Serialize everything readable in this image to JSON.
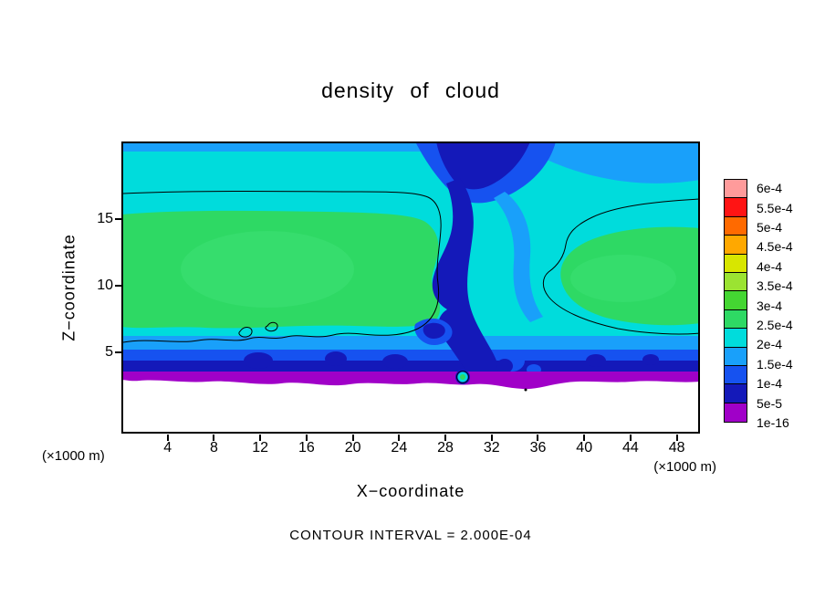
{
  "title": "density of cloud",
  "caption": "CONTOUR INTERVAL = 2.000E-04",
  "axes": {
    "x": {
      "label": "X−coordinate",
      "unit_left": "(×1000 m)",
      "unit_right": "(×1000 m)",
      "ticks": [
        4,
        8,
        12,
        16,
        20,
        24,
        28,
        32,
        36,
        40,
        44,
        48
      ],
      "range": [
        0,
        50
      ]
    },
    "z": {
      "label": "Z−coordinate",
      "ticks": [
        5,
        10,
        15
      ],
      "range": [
        0,
        21
      ]
    }
  },
  "colorbar": {
    "entries": [
      {
        "label": "6e-4",
        "color": "#ff9b9b"
      },
      {
        "label": "5.5e-4",
        "color": "#ff1414"
      },
      {
        "label": "5e-4",
        "color": "#ff6a00"
      },
      {
        "label": "4.5e-4",
        "color": "#ffa800"
      },
      {
        "label": "4e-4",
        "color": "#d8e600"
      },
      {
        "label": "3.5e-4",
        "color": "#9be332"
      },
      {
        "label": "3e-4",
        "color": "#44d632"
      },
      {
        "label": "2.5e-4",
        "color": "#2ed964"
      },
      {
        "label": "2e-4",
        "color": "#00dcdc"
      },
      {
        "label": "1.5e-4",
        "color": "#19a0fa"
      },
      {
        "label": "1e-4",
        "color": "#1652f0"
      },
      {
        "label": "5e-5",
        "color": "#1419b9"
      },
      {
        "label": "1e-16",
        "color": "#a000c8"
      }
    ]
  },
  "palette": {
    "cyan": "#00dcdc",
    "green": "#2ed964",
    "green_light": "#3ee276",
    "light_blue": "#19a0fa",
    "blue": "#1652f0",
    "dark_blue": "#1419b9",
    "purple": "#a000c8",
    "contour": "#000000"
  },
  "chart_data": {
    "type": "heatmap",
    "subtype": "filled-contour",
    "title": "density of cloud",
    "xlabel": "X−coordinate (×1000 m)",
    "ylabel": "Z−coordinate (×1000 m)",
    "xlim": [
      0,
      50
    ],
    "ylim": [
      0,
      21
    ],
    "contour_interval": 0.0002,
    "levels_ascending": [
      1e-16,
      5e-05,
      0.0001,
      0.00015,
      0.0002,
      0.00025,
      0.0003,
      0.00035,
      0.0004,
      0.00045,
      0.0005,
      0.00055,
      0.0006
    ],
    "level_colors_ascending": [
      "#a000c8",
      "#1419b9",
      "#1652f0",
      "#19a0fa",
      "#00dcdc",
      "#2ed964",
      "#44d632",
      "#9be332",
      "#d8e600",
      "#ffa800",
      "#ff6a00",
      "#ff1414",
      "#ff9b9b"
    ],
    "legend_position": "right-colorbar",
    "grid": false,
    "features": [
      {
        "name": "upper-cloud-layer",
        "description": "cyan band (2e-4 to 2.5e-4) spanning full width above z≈15, topped by a thin light-blue band at z≈20"
      },
      {
        "name": "main-cloud-deck-left",
        "description": "green region (2.5e-4 to 3e-4) from x≈0 to x≈27, z≈6.5 to z≈15.5"
      },
      {
        "name": "main-cloud-deck-right",
        "description": "green region (2.5e-4 to 3e-4) from x≈37 to x≈50, z≈7 to z≈14.5"
      },
      {
        "name": "downdraft-plume",
        "description": "dark blue low-density plume (5e-5 to 1.5e-4) descending near x≈28–33 from the top of the domain to the surface, with swirl structures near z≈6–9"
      },
      {
        "name": "sub-cloud-gradient",
        "description": "below z≈6 density decreases through light blue, blue and dark blue bands"
      },
      {
        "name": "cloud-base-strip",
        "description": "irregular purple strip (below 5e-5) near z≈3; white (no cloud) below"
      },
      {
        "name": "contour-2e-4",
        "description": "black 2e-4 contour encloses the left deck (x≈0–27, z≈6–17, wiggly lower edge with small closed loops near x≈10–13) and the right deck (x≈37–50, z≈6.5–16.5), plus a tiny closed ring around a cloud pocket near x≈29.5, z≈3"
      }
    ]
  }
}
